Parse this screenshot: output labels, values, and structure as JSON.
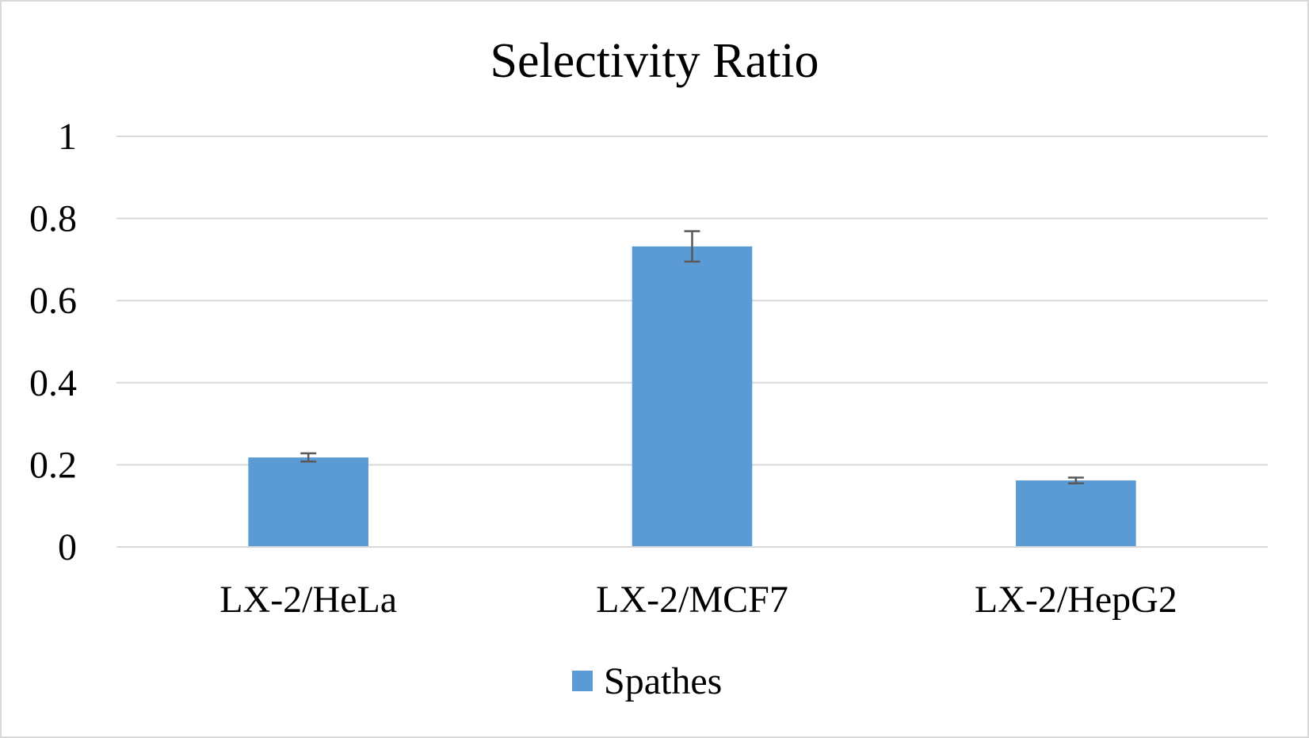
{
  "chart_data": {
    "type": "bar",
    "title": "Selectivity Ratio",
    "xlabel": "",
    "ylabel": "",
    "categories": [
      "LX-2/HeLa",
      "LX-2/MCF7",
      "LX-2/HepG2"
    ],
    "series": [
      {
        "name": "Spathes",
        "color": "#5b9bd5",
        "values": [
          0.218,
          0.732,
          0.162
        ],
        "error": [
          0.01,
          0.037,
          0.007
        ]
      }
    ],
    "ylim": [
      0,
      1
    ],
    "yticks": [
      0,
      0.2,
      0.4,
      0.6,
      0.8,
      1
    ],
    "ytick_labels": [
      "0",
      "0.2",
      "0.4",
      "0.6",
      "0.8",
      "1"
    ],
    "grid": true,
    "legend_position": "bottom"
  }
}
